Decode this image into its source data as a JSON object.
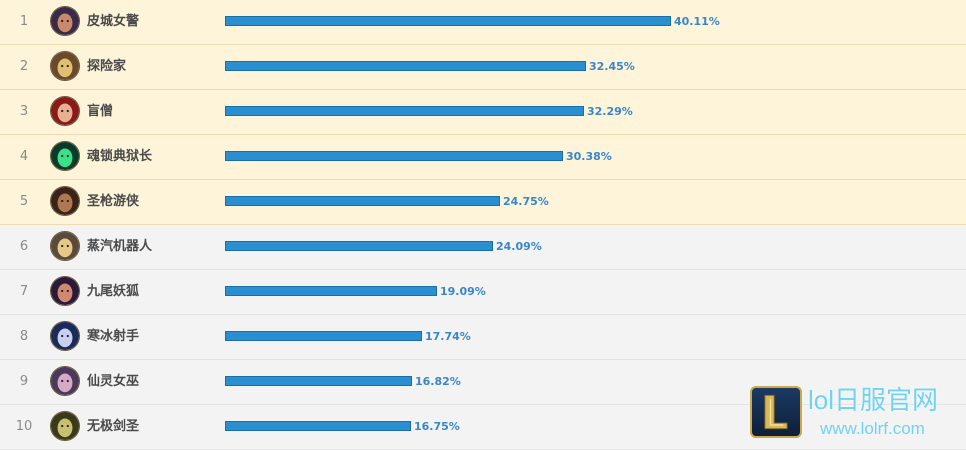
{
  "rows": [
    {
      "rank": "1",
      "name": "皮城女警",
      "value": 40.11,
      "pct": "40.11%",
      "avatar_icon": "champion-avatar-icon",
      "avatar_colors": [
        "#3a2a4a",
        "#c88a6a"
      ]
    },
    {
      "rank": "2",
      "name": "探险家",
      "value": 32.45,
      "pct": "32.45%",
      "avatar_icon": "champion-avatar-icon",
      "avatar_colors": [
        "#6a4a2a",
        "#e0c070"
      ]
    },
    {
      "rank": "3",
      "name": "盲僧",
      "value": 32.29,
      "pct": "32.29%",
      "avatar_icon": "champion-avatar-icon",
      "avatar_colors": [
        "#8a1a1a",
        "#e8b090"
      ]
    },
    {
      "rank": "4",
      "name": "魂锁典狱长",
      "value": 30.38,
      "pct": "30.38%",
      "avatar_icon": "champion-avatar-icon",
      "avatar_colors": [
        "#0a3a2a",
        "#3ae08a"
      ]
    },
    {
      "rank": "5",
      "name": "圣枪游侠",
      "value": 24.75,
      "pct": "24.75%",
      "avatar_icon": "champion-avatar-icon",
      "avatar_colors": [
        "#3a2418",
        "#b07850"
      ]
    },
    {
      "rank": "6",
      "name": "蒸汽机器人",
      "value": 24.09,
      "pct": "24.09%",
      "avatar_icon": "champion-avatar-icon",
      "avatar_colors": [
        "#5a4a3a",
        "#e8c888"
      ]
    },
    {
      "rank": "7",
      "name": "九尾妖狐",
      "value": 19.09,
      "pct": "19.09%",
      "avatar_icon": "champion-avatar-icon",
      "avatar_colors": [
        "#2a1a3a",
        "#d08870"
      ]
    },
    {
      "rank": "8",
      "name": "寒冰射手",
      "value": 17.74,
      "pct": "17.74%",
      "avatar_icon": "champion-avatar-icon",
      "avatar_colors": [
        "#1a2a5a",
        "#c8d0f0"
      ]
    },
    {
      "rank": "9",
      "name": "仙灵女巫",
      "value": 16.82,
      "pct": "16.82%",
      "avatar_icon": "champion-avatar-icon",
      "avatar_colors": [
        "#4a3a5a",
        "#d8a8c8"
      ]
    },
    {
      "rank": "10",
      "name": "无极剑圣",
      "value": 16.75,
      "pct": "16.75%",
      "avatar_icon": "champion-avatar-icon",
      "avatar_colors": [
        "#3a3a1a",
        "#c8c070"
      ]
    }
  ],
  "scale_max": 40.11,
  "colors": {
    "bar": "#2a8fd0",
    "pct_text": "#3a86c8",
    "top_row_bg": "#fdf4d9",
    "rest_row_bg": "#f3f3f3"
  },
  "watermark": {
    "title": "lol日服官网",
    "url": "www.lolrf.com",
    "logo_icon": "league-logo-icon"
  }
}
